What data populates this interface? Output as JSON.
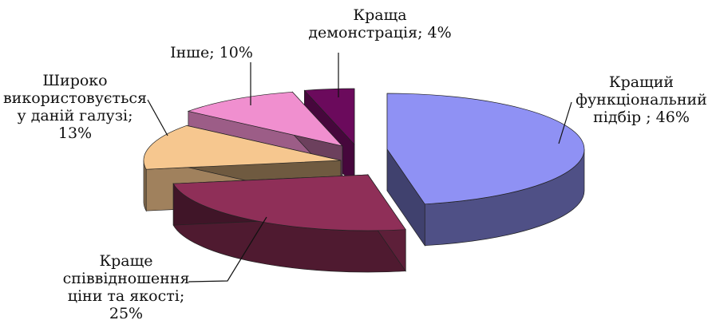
{
  "chart_data": {
    "type": "pie",
    "style": "3d-exploded",
    "title": "",
    "slices": [
      {
        "label": "Кращий\nфункціональний\nпідбір ; 46%",
        "value": 46,
        "color": "#8f91f4"
      },
      {
        "label": "Краще\nспіввідношення\nціни та якості;\n25%",
        "value": 25,
        "color": "#8f2f58"
      },
      {
        "label": "Широко\nвикористовується\nу даній галузі;\n13%",
        "value": 13,
        "color": "#f6c78f"
      },
      {
        "label": "Інше; 10%",
        "value": 10,
        "color": "#f08fcf"
      },
      {
        "label": "Краща\nдемонстрація; 4%",
        "value": 4,
        "color": "#6b0a5c"
      }
    ]
  }
}
